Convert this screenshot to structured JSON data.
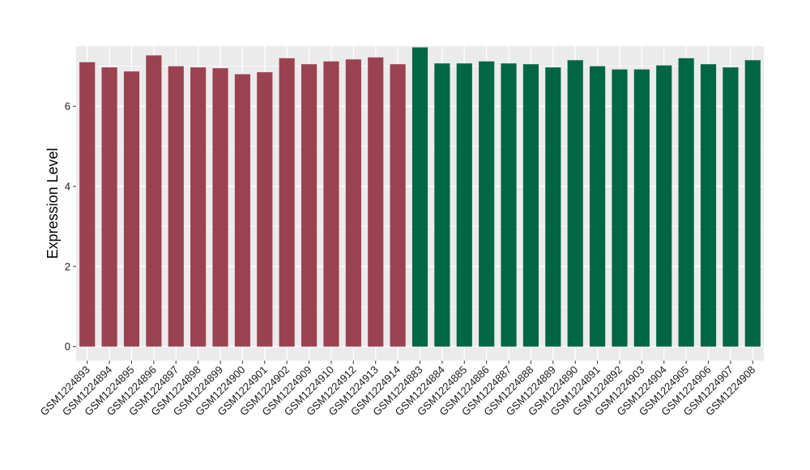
{
  "chart_data": {
    "type": "bar",
    "title": "",
    "xlabel": "",
    "ylabel": "Expression Level",
    "ylim": [
      -0.35,
      7.5
    ],
    "yticks": [
      0,
      2,
      4,
      6
    ],
    "grid": true,
    "legend": "none",
    "background_color": "#EBEBEB",
    "gridline_color": "#FFFFFF",
    "groups": [
      {
        "color": "#9B4250",
        "count": 15
      },
      {
        "color": "#006643",
        "count": 16
      }
    ],
    "categories": [
      "GSM1224893",
      "GSM1224894",
      "GSM1224895",
      "GSM1224896",
      "GSM1224897",
      "GSM1224898",
      "GSM1224899",
      "GSM1224900",
      "GSM1224901",
      "GSM1224902",
      "GSM1224909",
      "GSM1224910",
      "GSM1224912",
      "GSM1224913",
      "GSM1224914",
      "GSM1224883",
      "GSM1224884",
      "GSM1224885",
      "GSM1224886",
      "GSM1224887",
      "GSM1224888",
      "GSM1224889",
      "GSM1224890",
      "GSM1224891",
      "GSM1224892",
      "GSM1224903",
      "GSM1224904",
      "GSM1224905",
      "GSM1224906",
      "GSM1224907",
      "GSM1224908"
    ],
    "values": [
      7.1,
      6.97,
      6.87,
      7.27,
      7.0,
      6.97,
      6.95,
      6.8,
      6.85,
      7.2,
      7.05,
      7.12,
      7.17,
      7.22,
      7.05,
      7.47,
      7.07,
      7.07,
      7.12,
      7.07,
      7.05,
      6.97,
      7.15,
      7.0,
      6.92,
      6.92,
      7.02,
      7.2,
      7.05,
      6.97,
      7.15
    ]
  }
}
